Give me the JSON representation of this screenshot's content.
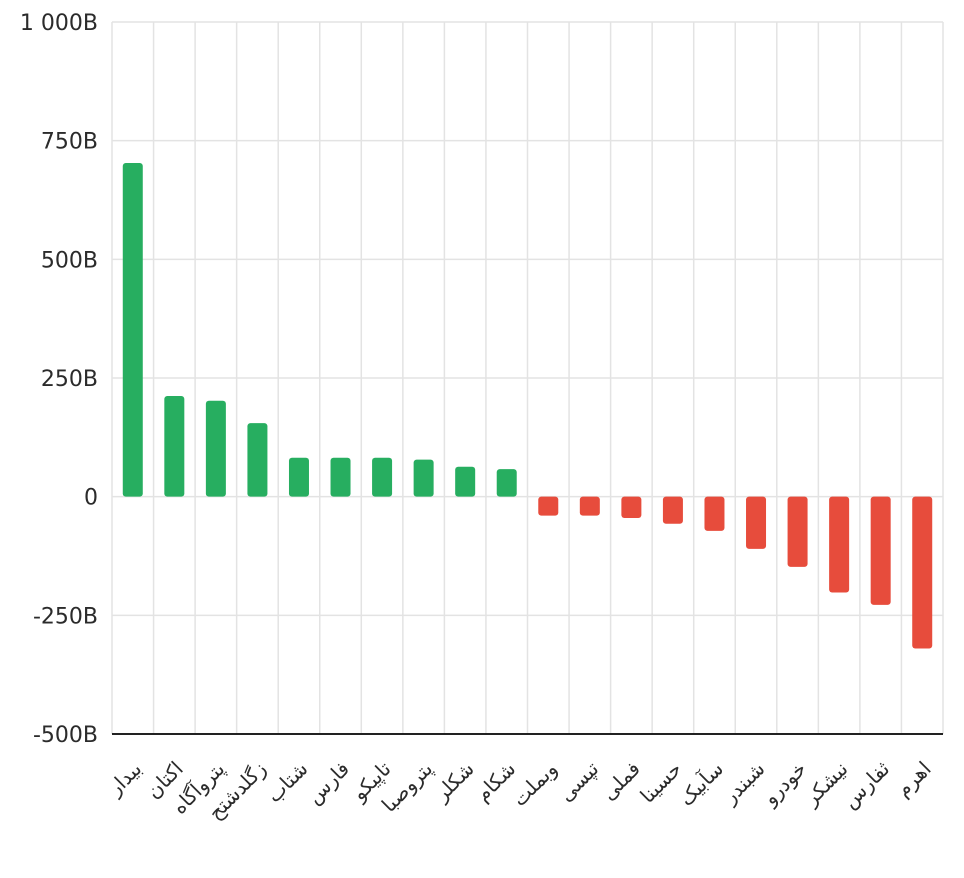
{
  "chart_data": {
    "type": "bar",
    "title": "",
    "xlabel": "",
    "ylabel": "",
    "ylim": [
      -500,
      1000
    ],
    "yticks": [
      {
        "value": 1000,
        "label": "1 000B"
      },
      {
        "value": 750,
        "label": "750B"
      },
      {
        "value": 500,
        "label": "500B"
      },
      {
        "value": 250,
        "label": "250B"
      },
      {
        "value": 0,
        "label": "0"
      },
      {
        "value": -250,
        "label": "-250B"
      },
      {
        "value": -500,
        "label": "-500B"
      }
    ],
    "categories": [
      "بیدار",
      "اکتان",
      "پتروآگاه",
      "زگلدشتح",
      "شتاب",
      "فارس",
      "تاپیکو",
      "پتروصبا",
      "شکلر",
      "شکام",
      "وبملت",
      "تپسی",
      "فملی",
      "حسینا",
      "سآبیک",
      "شبندر",
      "خودرو",
      "نیشکر",
      "ثفارس",
      "اهرم"
    ],
    "values": [
      703,
      212,
      202,
      155,
      82,
      82,
      82,
      78,
      63,
      58,
      -40,
      -40,
      -45,
      -57,
      -72,
      -110,
      -148,
      -202,
      -228,
      -320
    ],
    "grid": true,
    "legend": "none",
    "colors": {
      "positive": "#27ae60",
      "negative": "#e74c3c"
    }
  }
}
